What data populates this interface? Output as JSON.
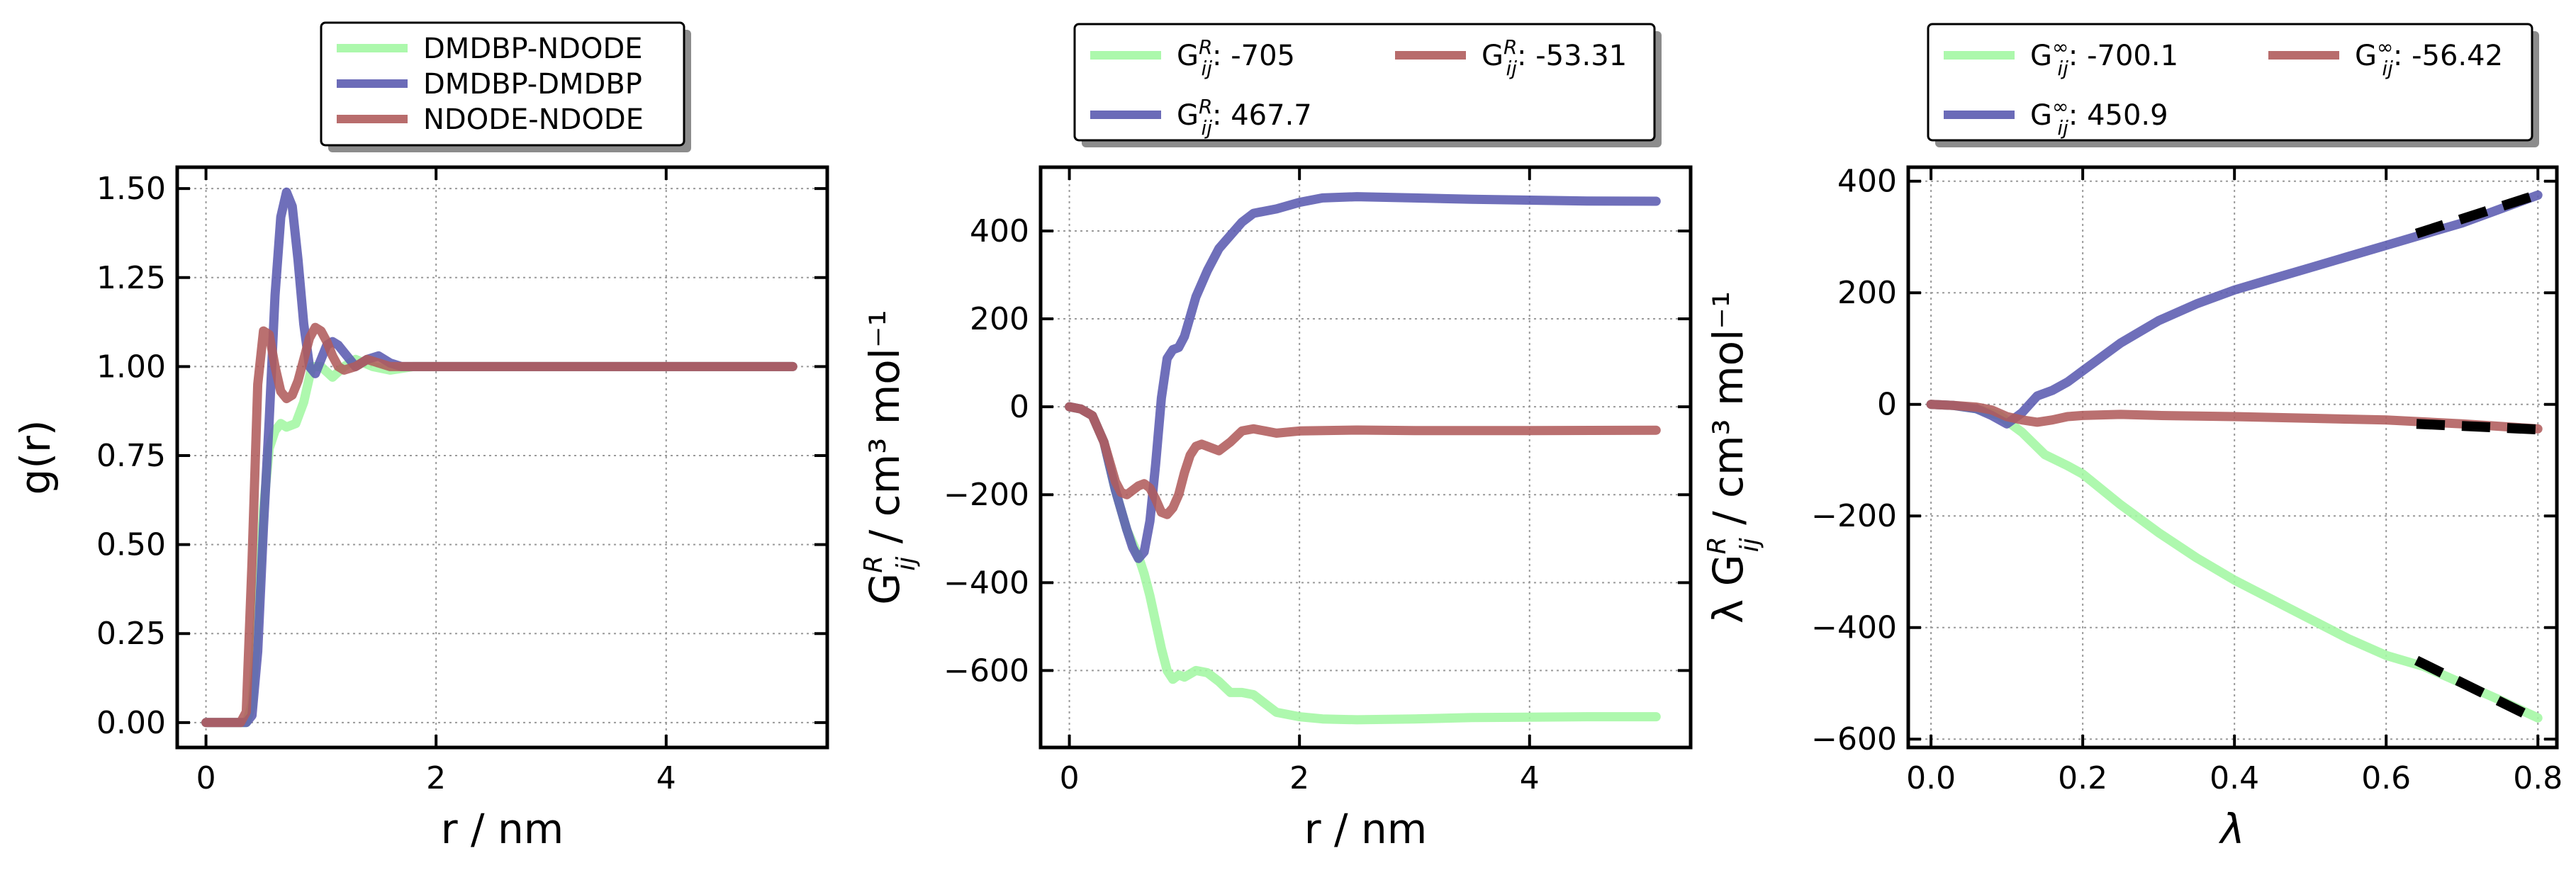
{
  "chart_data": [
    {
      "type": "line",
      "xlabel": "r / nm",
      "ylabel": "g(r)",
      "xlim": [
        -0.25,
        5.4
      ],
      "ylim": [
        -0.07,
        1.56
      ],
      "xticks": [
        0,
        2,
        4
      ],
      "yticks": [
        0.0,
        0.25,
        0.5,
        0.75,
        1.0,
        1.25,
        1.5
      ],
      "ytick_labels": [
        "0.00",
        "0.25",
        "0.50",
        "0.75",
        "1.00",
        "1.25",
        "1.50"
      ],
      "grid": true,
      "legend_position": "above",
      "legend_columns": 1,
      "series": [
        {
          "name": "DMDBP-NDODE",
          "color": "#a3f7a3",
          "x": [
            0,
            0.35,
            0.4,
            0.45,
            0.5,
            0.55,
            0.6,
            0.65,
            0.7,
            0.78,
            0.85,
            0.92,
            1.0,
            1.1,
            1.2,
            1.3,
            1.45,
            1.6,
            1.8,
            2.0,
            2.5,
            3.0,
            4.0,
            5.1
          ],
          "y": [
            0,
            0,
            0.05,
            0.3,
            0.6,
            0.77,
            0.82,
            0.84,
            0.83,
            0.84,
            0.9,
            1.0,
            1.0,
            0.97,
            1.0,
            1.02,
            1.0,
            0.99,
            1.0,
            1.0,
            1.0,
            1.0,
            1.0,
            1.0
          ]
        },
        {
          "name": "DMDBP-DMDBP",
          "color": "#5b5bb0",
          "x": [
            0,
            0.35,
            0.4,
            0.45,
            0.5,
            0.55,
            0.6,
            0.65,
            0.7,
            0.75,
            0.8,
            0.85,
            0.9,
            0.95,
            1.0,
            1.05,
            1.1,
            1.15,
            1.2,
            1.3,
            1.4,
            1.5,
            1.6,
            1.7,
            1.8,
            2.0,
            2.5,
            3.0,
            4.0,
            5.1
          ],
          "y": [
            0,
            0,
            0.02,
            0.2,
            0.55,
            0.85,
            1.2,
            1.42,
            1.49,
            1.45,
            1.3,
            1.12,
            1.0,
            0.98,
            1.02,
            1.06,
            1.07,
            1.06,
            1.04,
            1.0,
            1.02,
            1.03,
            1.01,
            1.0,
            1.0,
            1.0,
            1.0,
            1.0,
            1.0,
            1.0
          ]
        },
        {
          "name": "NDODE-NDODE",
          "color": "#b05c5c",
          "x": [
            0,
            0.3,
            0.35,
            0.4,
            0.45,
            0.5,
            0.55,
            0.6,
            0.65,
            0.7,
            0.75,
            0.8,
            0.85,
            0.9,
            0.95,
            1.0,
            1.05,
            1.1,
            1.15,
            1.2,
            1.3,
            1.4,
            1.5,
            1.6,
            1.8,
            2.0,
            2.5,
            3.0,
            4.0,
            5.1
          ],
          "y": [
            0,
            0,
            0.03,
            0.45,
            0.95,
            1.1,
            1.09,
            1.0,
            0.93,
            0.91,
            0.92,
            0.96,
            1.02,
            1.08,
            1.11,
            1.1,
            1.07,
            1.03,
            1.0,
            0.99,
            1.0,
            1.02,
            1.01,
            1.0,
            1.0,
            1.0,
            1.0,
            1.0,
            1.0,
            1.0
          ]
        }
      ]
    },
    {
      "type": "line",
      "xlabel": "r / nm",
      "ylabel_main": "G",
      "ylabel_sup": "R",
      "ylabel_sub": "ij",
      "ylabel_unit": " / cm³ mol⁻¹",
      "xlim": [
        -0.25,
        5.4
      ],
      "ylim": [
        -775,
        545
      ],
      "xticks": [
        0,
        2,
        4
      ],
      "yticks": [
        -600,
        -400,
        -200,
        0,
        200,
        400
      ],
      "ytick_labels": [
        "−600",
        "−400",
        "−200",
        "0",
        "200",
        "400"
      ],
      "grid": true,
      "legend_position": "above",
      "legend_columns": 2,
      "series": [
        {
          "name_main": "G",
          "name_sup": "R",
          "name_sub": "ij",
          "name_value": ": -705",
          "color": "#a3f7a3",
          "x": [
            0,
            0.1,
            0.2,
            0.3,
            0.4,
            0.5,
            0.6,
            0.65,
            0.7,
            0.75,
            0.8,
            0.85,
            0.9,
            0.95,
            1.0,
            1.1,
            1.2,
            1.3,
            1.4,
            1.5,
            1.6,
            1.7,
            1.8,
            2.0,
            2.2,
            2.5,
            3.0,
            3.5,
            4.0,
            4.5,
            5.1
          ],
          "y": [
            0,
            -5,
            -20,
            -80,
            -190,
            -280,
            -340,
            -380,
            -430,
            -490,
            -550,
            -600,
            -620,
            -610,
            -615,
            -600,
            -605,
            -625,
            -650,
            -650,
            -655,
            -675,
            -695,
            -705,
            -710,
            -712,
            -710,
            -707,
            -706,
            -705,
            -705
          ]
        },
        {
          "name_main": "G",
          "name_sup": "R",
          "name_sub": "ij",
          "name_value": ": 467.7",
          "color": "#5b5bb0",
          "x": [
            0,
            0.1,
            0.2,
            0.3,
            0.4,
            0.5,
            0.55,
            0.6,
            0.65,
            0.7,
            0.75,
            0.8,
            0.85,
            0.9,
            0.95,
            1.0,
            1.1,
            1.2,
            1.3,
            1.4,
            1.5,
            1.6,
            1.7,
            1.8,
            2.0,
            2.2,
            2.5,
            3.0,
            3.5,
            4.0,
            4.5,
            5.1
          ],
          "y": [
            0,
            -5,
            -20,
            -80,
            -190,
            -280,
            -320,
            -345,
            -330,
            -260,
            -130,
            20,
            110,
            130,
            135,
            160,
            250,
            310,
            360,
            390,
            420,
            440,
            445,
            450,
            465,
            475,
            478,
            475,
            472,
            470,
            468,
            467.7
          ]
        },
        {
          "name_main": "G",
          "name_sup": "R",
          "name_sub": "ij",
          "name_value": ": -53.31",
          "color": "#b05c5c",
          "x": [
            0,
            0.1,
            0.2,
            0.3,
            0.4,
            0.45,
            0.5,
            0.55,
            0.6,
            0.65,
            0.7,
            0.75,
            0.8,
            0.85,
            0.9,
            0.95,
            1.0,
            1.05,
            1.1,
            1.15,
            1.2,
            1.3,
            1.4,
            1.5,
            1.6,
            1.7,
            1.8,
            2.0,
            2.5,
            3.0,
            4.0,
            5.1
          ],
          "y": [
            0,
            -5,
            -20,
            -80,
            -170,
            -195,
            -200,
            -190,
            -180,
            -175,
            -185,
            -210,
            -240,
            -245,
            -230,
            -200,
            -150,
            -110,
            -90,
            -85,
            -90,
            -100,
            -80,
            -55,
            -50,
            -55,
            -60,
            -55,
            -53,
            -54,
            -54,
            -53.31
          ]
        }
      ]
    },
    {
      "type": "line",
      "xlabel": "λ",
      "ylabel_pre": "λ G",
      "ylabel_sup": "R",
      "ylabel_sub": "ij",
      "ylabel_unit": " / cm³ mol⁻¹",
      "xlim": [
        -0.03,
        0.825
      ],
      "ylim": [
        -615,
        425
      ],
      "xticks": [
        0.0,
        0.2,
        0.4,
        0.6,
        0.8
      ],
      "xtick_labels": [
        "0.0",
        "0.2",
        "0.4",
        "0.6",
        "0.8"
      ],
      "yticks": [
        -600,
        -400,
        -200,
        0,
        200,
        400
      ],
      "ytick_labels": [
        "−600",
        "−400",
        "−200",
        "0",
        "200",
        "400"
      ],
      "grid": true,
      "legend_position": "above",
      "legend_columns": 2,
      "series": [
        {
          "name_main": "G",
          "name_sup": "∞",
          "name_sub": "ij",
          "name_value": ": -700.1",
          "color": "#a3f7a3",
          "x": [
            0,
            0.03,
            0.06,
            0.09,
            0.12,
            0.15,
            0.18,
            0.2,
            0.25,
            0.3,
            0.35,
            0.4,
            0.45,
            0.5,
            0.55,
            0.6,
            0.65,
            0.7,
            0.75,
            0.8
          ],
          "y": [
            0,
            -2,
            -8,
            -20,
            -50,
            -90,
            -110,
            -125,
            -180,
            -230,
            -275,
            -315,
            -350,
            -385,
            -420,
            -450,
            -470,
            -500,
            -530,
            -562
          ]
        },
        {
          "name_main": "G",
          "name_sup": "∞",
          "name_sub": "ij",
          "name_value": ": 450.9",
          "color": "#5b5bb0",
          "x": [
            0,
            0.03,
            0.06,
            0.08,
            0.1,
            0.12,
            0.14,
            0.16,
            0.18,
            0.2,
            0.25,
            0.3,
            0.35,
            0.4,
            0.45,
            0.5,
            0.55,
            0.6,
            0.65,
            0.7,
            0.75,
            0.8
          ],
          "y": [
            0,
            -2,
            -8,
            -20,
            -35,
            -15,
            15,
            25,
            40,
            60,
            110,
            150,
            180,
            205,
            225,
            245,
            265,
            285,
            305,
            325,
            350,
            375
          ]
        },
        {
          "name_main": "G",
          "name_sup": "∞",
          "name_sub": "ij",
          "name_value": ": -56.42",
          "color": "#b05c5c",
          "x": [
            0,
            0.03,
            0.06,
            0.08,
            0.1,
            0.12,
            0.14,
            0.16,
            0.18,
            0.2,
            0.25,
            0.3,
            0.4,
            0.5,
            0.6,
            0.7,
            0.8
          ],
          "y": [
            0,
            -2,
            -5,
            -10,
            -22,
            -28,
            -32,
            -28,
            -22,
            -20,
            -18,
            -20,
            -22,
            -25,
            -28,
            -35,
            -44
          ]
        }
      ],
      "fits": [
        {
          "x": [
            0.64,
            0.8
          ],
          "y": [
            306,
            376
          ]
        },
        {
          "x": [
            0.64,
            0.8
          ],
          "y": [
            -459,
            -566
          ]
        },
        {
          "x": [
            0.64,
            0.8
          ],
          "y": [
            -35,
            -45
          ]
        }
      ]
    }
  ]
}
